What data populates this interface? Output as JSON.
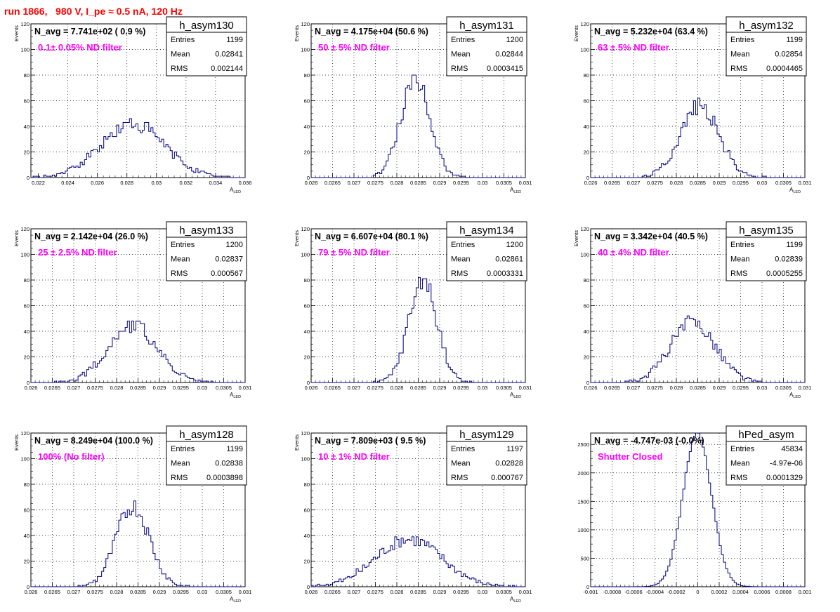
{
  "title": "run 1866,   980 V, I_pe ≈ 0.5 nA, 120 Hz",
  "colors": {
    "histogram": "#000080",
    "annotation": "#ff00ff",
    "title": "#ff0000"
  },
  "chart_data": [
    {
      "type": "bar",
      "name": "h_asym130",
      "header": "N_avg = 7.741e+02 ( 0.9 %)",
      "annotation": "0.1± 0.05% ND filter",
      "stats": [
        [
          "Entries",
          "1199"
        ],
        [
          "Mean",
          "0.02841"
        ],
        [
          "RMS",
          "0.002144"
        ]
      ],
      "xlabel": "A",
      "xlabel_sub": "LED",
      "ylabel": "Events",
      "xlim": [
        0.0215,
        0.036
      ],
      "ylim": [
        0,
        120
      ],
      "xticks": [
        0.022,
        0.024,
        0.026,
        0.028,
        0.03,
        0.032,
        0.034,
        0.036
      ],
      "xtick_labels": [
        "0.022",
        "0.024",
        "0.026",
        "0.028",
        "0.03",
        "0.032",
        "0.034",
        "0.036"
      ],
      "yticks": [
        0,
        20,
        40,
        60,
        80,
        100,
        120
      ],
      "ytick_labels": [
        "0",
        "20",
        "40",
        "60",
        "80",
        "100",
        "120"
      ],
      "mean": 0.02841,
      "sigma": 0.00215,
      "peak": 42,
      "bins": 100,
      "seed": 130
    },
    {
      "type": "bar",
      "name": "h_asym131",
      "header": "N_avg = 4.175e+04 (50.6 %)",
      "annotation": "50 ± 5% ND filter",
      "stats": [
        [
          "Entries",
          "1200"
        ],
        [
          "Mean",
          "0.02844"
        ],
        [
          "RMS",
          "0.0003415"
        ]
      ],
      "xlabel": "A",
      "xlabel_sub": "LED",
      "ylabel": "Events",
      "xlim": [
        0.026,
        0.031
      ],
      "ylim": [
        0,
        120
      ],
      "xticks": [
        0.026,
        0.0265,
        0.027,
        0.0275,
        0.028,
        0.0285,
        0.029,
        0.0295,
        0.03,
        0.0305,
        0.031
      ],
      "xtick_labels": [
        "0.026",
        "0.0265",
        "0.027",
        "0.0275",
        "0.028",
        "0.0285",
        "0.029",
        "0.0295",
        "0.03",
        "0.0305",
        "0.031"
      ],
      "yticks": [
        0,
        20,
        40,
        60,
        80,
        100,
        120
      ],
      "ytick_labels": [
        "0",
        "20",
        "40",
        "60",
        "80",
        "100",
        "120"
      ],
      "mean": 0.02844,
      "sigma": 0.00034,
      "peak": 78,
      "bins": 100,
      "seed": 131
    },
    {
      "type": "bar",
      "name": "h_asym132",
      "header": "N_avg = 5.232e+04 (63.4 %)",
      "annotation": "63 ± 5% ND filter",
      "stats": [
        [
          "Entries",
          "1199"
        ],
        [
          "Mean",
          "0.02854"
        ],
        [
          "RMS",
          "0.0004465"
        ]
      ],
      "xlabel": "A",
      "xlabel_sub": "LED",
      "ylabel": "Events",
      "xlim": [
        0.026,
        0.031
      ],
      "ylim": [
        0,
        120
      ],
      "xticks": [
        0.026,
        0.0265,
        0.027,
        0.0275,
        0.028,
        0.0285,
        0.029,
        0.0295,
        0.03,
        0.0305,
        0.031
      ],
      "xtick_labels": [
        "0.026",
        "0.0265",
        "0.027",
        "0.0275",
        "0.028",
        "0.0285",
        "0.029",
        "0.0295",
        "0.03",
        "0.0305",
        "0.031"
      ],
      "yticks": [
        0,
        20,
        40,
        60,
        80,
        100,
        120
      ],
      "ytick_labels": [
        "0",
        "20",
        "40",
        "60",
        "80",
        "100",
        "120"
      ],
      "mean": 0.02854,
      "sigma": 0.00045,
      "peak": 56,
      "bins": 100,
      "seed": 132
    },
    {
      "type": "bar",
      "name": "h_asym133",
      "header": "N_avg = 2.142e+04 (26.0 %)",
      "annotation": "25 ± 2.5% ND filter",
      "stats": [
        [
          "Entries",
          "1200"
        ],
        [
          "Mean",
          "0.02837"
        ],
        [
          "RMS",
          "0.000567"
        ]
      ],
      "xlabel": "A",
      "xlabel_sub": "LED",
      "ylabel": "Events",
      "xlim": [
        0.026,
        0.031
      ],
      "ylim": [
        0,
        120
      ],
      "xticks": [
        0.026,
        0.0265,
        0.027,
        0.0275,
        0.028,
        0.0285,
        0.029,
        0.0295,
        0.03,
        0.0305,
        0.031
      ],
      "xtick_labels": [
        "0.026",
        "0.0265",
        "0.027",
        "0.0275",
        "0.028",
        "0.0285",
        "0.029",
        "0.0295",
        "0.03",
        "0.0305",
        "0.031"
      ],
      "yticks": [
        0,
        20,
        40,
        60,
        80,
        100,
        120
      ],
      "ytick_labels": [
        "0",
        "20",
        "40",
        "60",
        "80",
        "100",
        "120"
      ],
      "mean": 0.02837,
      "sigma": 0.00057,
      "peak": 45,
      "bins": 100,
      "seed": 133
    },
    {
      "type": "bar",
      "name": "h_asym134",
      "header": "N_avg = 6.607e+04 (80.1 %)",
      "annotation": "79 ± 5% ND filter",
      "stats": [
        [
          "Entries",
          "1200"
        ],
        [
          "Mean",
          "0.02861"
        ],
        [
          "RMS",
          "0.0003331"
        ]
      ],
      "xlabel": "A",
      "xlabel_sub": "LED",
      "ylabel": "Events",
      "xlim": [
        0.026,
        0.031
      ],
      "ylim": [
        0,
        120
      ],
      "xticks": [
        0.026,
        0.0265,
        0.027,
        0.0275,
        0.028,
        0.0285,
        0.029,
        0.0295,
        0.03,
        0.0305,
        0.031
      ],
      "xtick_labels": [
        "0.026",
        "0.0265",
        "0.027",
        "0.0275",
        "0.028",
        "0.0285",
        "0.029",
        "0.0295",
        "0.03",
        "0.0305",
        "0.031"
      ],
      "yticks": [
        0,
        20,
        40,
        60,
        80,
        100,
        120
      ],
      "ytick_labels": [
        "0",
        "20",
        "40",
        "60",
        "80",
        "100",
        "120"
      ],
      "mean": 0.02861,
      "sigma": 0.00033,
      "peak": 80,
      "bins": 100,
      "seed": 134
    },
    {
      "type": "bar",
      "name": "h_asym135",
      "header": "N_avg = 3.342e+04 (40.5 %)",
      "annotation": "40 ± 4% ND filter",
      "stats": [
        [
          "Entries",
          "1199"
        ],
        [
          "Mean",
          "0.02839"
        ],
        [
          "RMS",
          "0.0005255"
        ]
      ],
      "xlabel": "A",
      "xlabel_sub": "LED",
      "ylabel": "Events",
      "xlim": [
        0.026,
        0.031
      ],
      "ylim": [
        0,
        120
      ],
      "xticks": [
        0.026,
        0.0265,
        0.027,
        0.0275,
        0.028,
        0.0285,
        0.029,
        0.0295,
        0.03,
        0.0305,
        0.031
      ],
      "xtick_labels": [
        "0.026",
        "0.0265",
        "0.027",
        "0.0275",
        "0.028",
        "0.0285",
        "0.029",
        "0.0295",
        "0.03",
        "0.0305",
        "0.031"
      ],
      "yticks": [
        0,
        20,
        40,
        60,
        80,
        100,
        120
      ],
      "ytick_labels": [
        "0",
        "20",
        "40",
        "60",
        "80",
        "100",
        "120"
      ],
      "mean": 0.02839,
      "sigma": 0.00053,
      "peak": 47,
      "bins": 100,
      "seed": 135
    },
    {
      "type": "bar",
      "name": "h_asym128",
      "header": "N_avg = 8.249e+04 (100.0 %)",
      "annotation": "100% (No filter)",
      "stats": [
        [
          "Entries",
          "1199"
        ],
        [
          "Mean",
          "0.02838"
        ],
        [
          "RMS",
          "0.0003898"
        ]
      ],
      "xlabel": "A",
      "xlabel_sub": "LED",
      "ylabel": "Events",
      "xlim": [
        0.026,
        0.031
      ],
      "ylim": [
        0,
        120
      ],
      "xticks": [
        0.026,
        0.0265,
        0.027,
        0.0275,
        0.028,
        0.0285,
        0.029,
        0.0295,
        0.03,
        0.0305,
        0.031
      ],
      "xtick_labels": [
        "0.026",
        "0.0265",
        "0.027",
        "0.0275",
        "0.028",
        "0.0285",
        "0.029",
        "0.0295",
        "0.03",
        "0.0305",
        "0.031"
      ],
      "yticks": [
        0,
        20,
        40,
        60,
        80,
        100,
        120
      ],
      "ytick_labels": [
        "0",
        "20",
        "40",
        "60",
        "80",
        "100",
        "120"
      ],
      "mean": 0.02838,
      "sigma": 0.00039,
      "peak": 63,
      "bins": 100,
      "seed": 128
    },
    {
      "type": "bar",
      "name": "h_asym129",
      "header": "N_avg = 7.809e+03 ( 9.5 %)",
      "annotation": "10 ± 1% ND filter",
      "stats": [
        [
          "Entries",
          "1197"
        ],
        [
          "Mean",
          "0.02828"
        ],
        [
          "RMS",
          "0.000767"
        ]
      ],
      "xlabel": "A",
      "xlabel_sub": "LED",
      "ylabel": "Events",
      "xlim": [
        0.026,
        0.031
      ],
      "ylim": [
        0,
        120
      ],
      "xticks": [
        0.026,
        0.0265,
        0.027,
        0.0275,
        0.028,
        0.0285,
        0.029,
        0.0295,
        0.03,
        0.0305,
        0.031
      ],
      "xtick_labels": [
        "0.026",
        "0.0265",
        "0.027",
        "0.0275",
        "0.028",
        "0.0285",
        "0.029",
        "0.0295",
        "0.03",
        "0.0305",
        "0.031"
      ],
      "yticks": [
        0,
        20,
        40,
        60,
        80,
        100,
        120
      ],
      "ytick_labels": [
        "0",
        "20",
        "40",
        "60",
        "80",
        "100",
        "120"
      ],
      "mean": 0.02828,
      "sigma": 0.00077,
      "peak": 37,
      "bins": 100,
      "seed": 129
    },
    {
      "type": "bar",
      "name": "hPed_asym",
      "header": "N_avg = -4.747e-03 (-0.0%)",
      "annotation": "Shutter Closed",
      "stats": [
        [
          "Entries",
          "45834"
        ],
        [
          "Mean",
          "-4.97e-06"
        ],
        [
          "RMS",
          "0.0001329"
        ]
      ],
      "xlabel": "",
      "xlabel_sub": "",
      "ylabel": "",
      "xlim": [
        -0.001,
        0.001
      ],
      "ylim": [
        0,
        2700
      ],
      "xticks": [
        -0.001,
        -0.0008,
        -0.0006,
        -0.0004,
        -0.0002,
        0,
        0.0002,
        0.0004,
        0.0006,
        0.0008,
        0.001
      ],
      "xtick_labels": [
        "-0.001",
        "-0.0008",
        "-0.0006",
        "-0.0004",
        "-0.0002",
        "0",
        "0.0002",
        "0.0004",
        "0.0006",
        "0.0008",
        "0.001"
      ],
      "yticks": [
        0,
        500,
        1000,
        1500,
        2000,
        2500
      ],
      "ytick_labels": [
        "0",
        "500",
        "1000",
        "1500",
        "2000",
        "2500"
      ],
      "mean": -5e-06,
      "sigma": 0.000133,
      "peak": 2700,
      "bins": 100,
      "seed": 7
    }
  ]
}
